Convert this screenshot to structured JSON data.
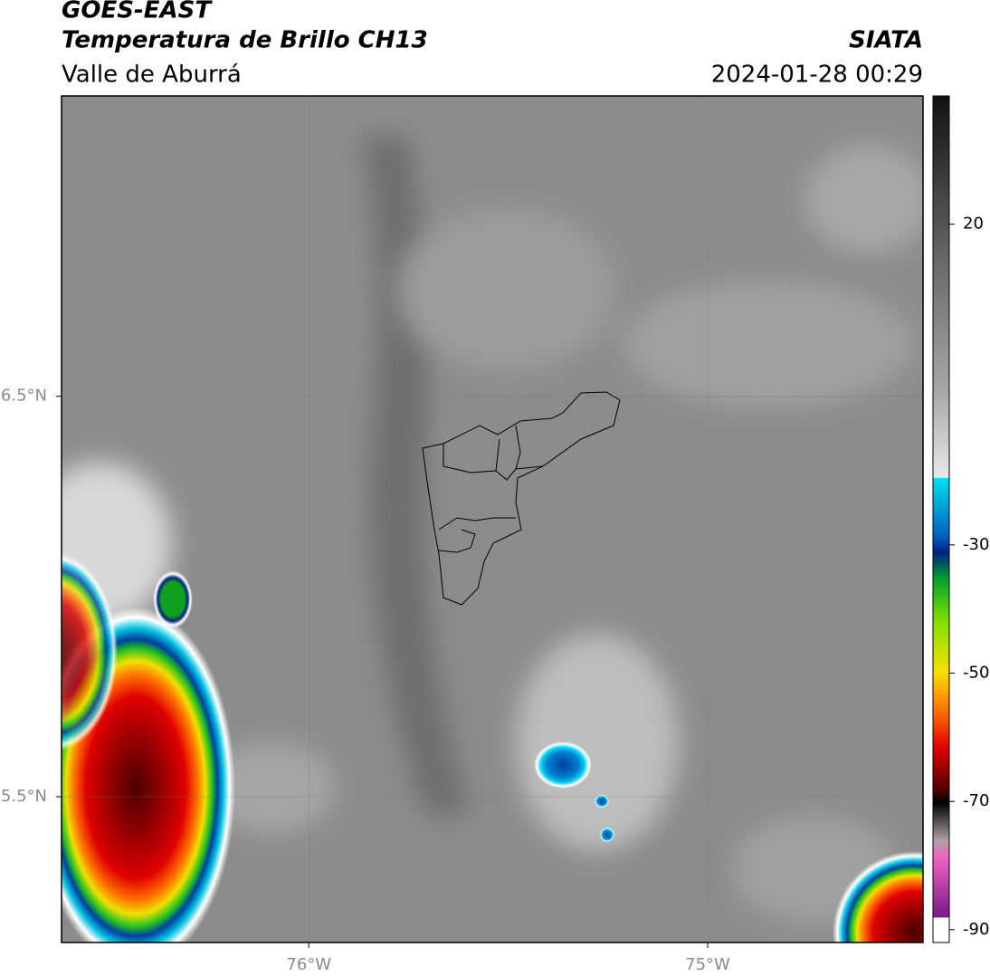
{
  "header": {
    "line1": "GOES-EAST",
    "line2": "Temperatura de Brillo CH13",
    "agency": "SIATA",
    "region": "Valle de Aburrá",
    "timestamp": "2024-01-28 00:29"
  },
  "map": {
    "xlim": [
      -76.62,
      -74.46
    ],
    "ylim": [
      5.136,
      7.25
    ],
    "xticks": [
      {
        "value": -76,
        "label": "76°W"
      },
      {
        "value": -75,
        "label": "75°W"
      }
    ],
    "yticks": [
      {
        "value": 6.5,
        "label": "6.5°N"
      },
      {
        "value": 5.5,
        "label": "5.5°N"
      }
    ],
    "grid": true
  },
  "colorbar": {
    "lim": [
      -92,
      40
    ],
    "ticks": [
      20,
      -30,
      -50,
      -70,
      -90
    ]
  }
}
